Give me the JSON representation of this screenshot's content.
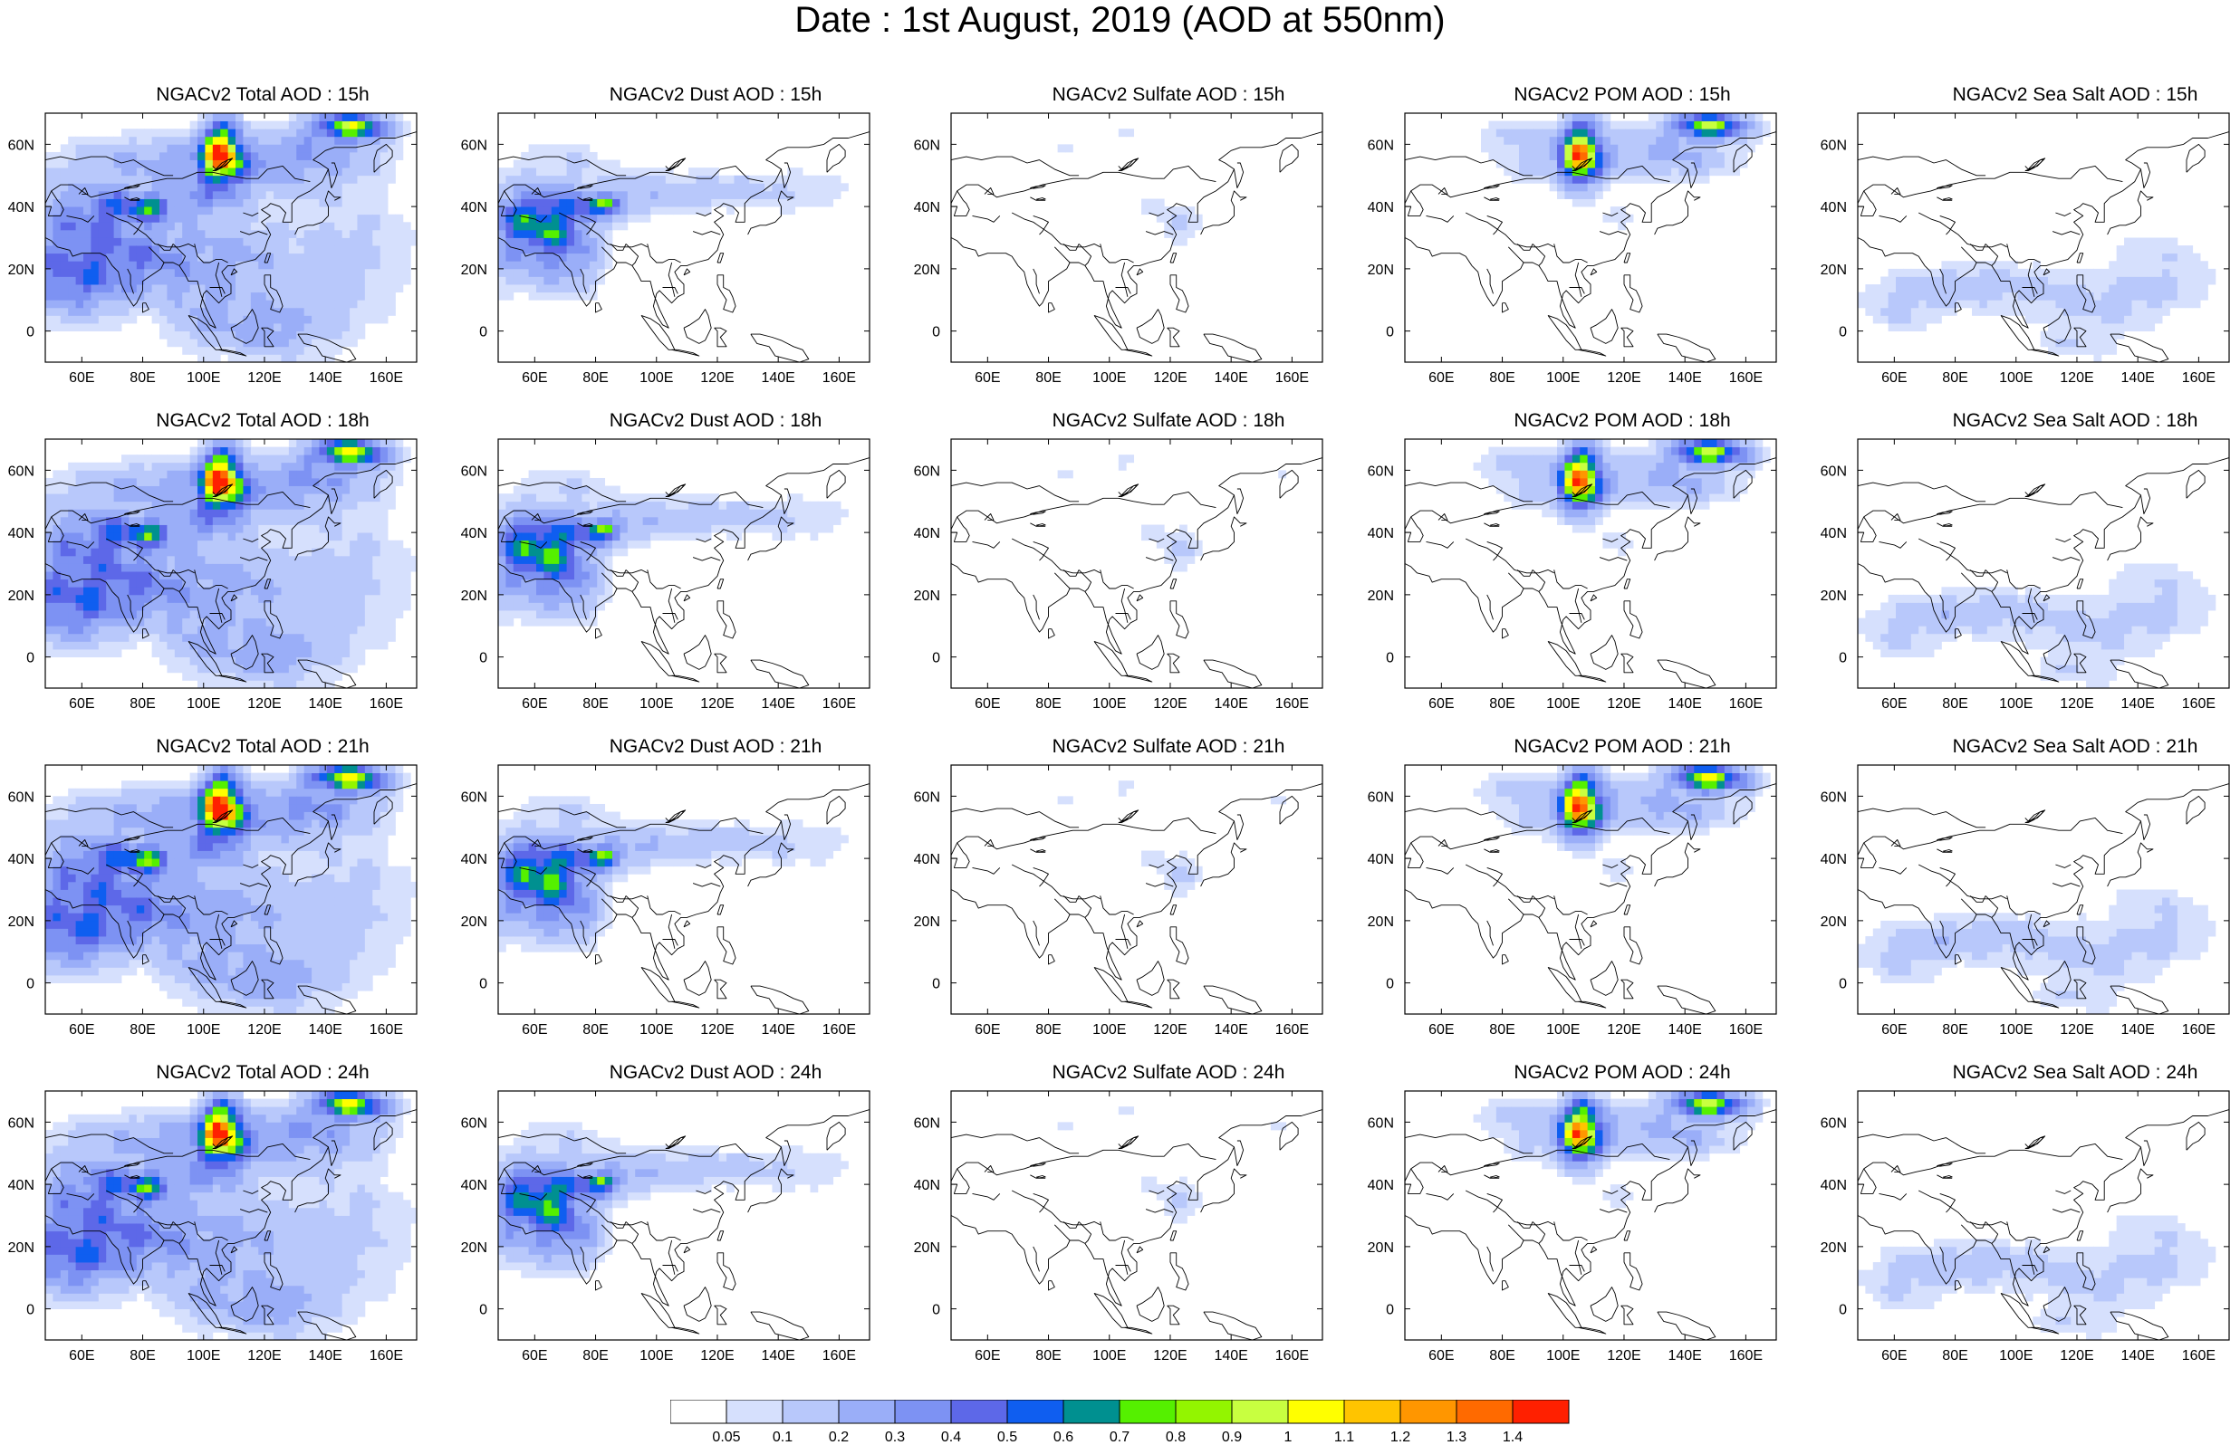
{
  "title": "Date : 1st August, 2019 (AOD at 550nm)",
  "panels": [
    [
      {
        "title": "NGACv2 Total AOD : 15h",
        "species": "total",
        "hour": 15
      },
      {
        "title": "NGACv2 Dust AOD : 15h",
        "species": "dust",
        "hour": 15
      },
      {
        "title": "NGACv2 Sulfate AOD : 15h",
        "species": "sulfate",
        "hour": 15
      },
      {
        "title": "NGACv2 POM AOD : 15h",
        "species": "pom",
        "hour": 15
      },
      {
        "title": "NGACv2 Sea Salt AOD : 15h",
        "species": "seasalt",
        "hour": 15
      }
    ],
    [
      {
        "title": "NGACv2 Total AOD : 18h",
        "species": "total",
        "hour": 18
      },
      {
        "title": "NGACv2 Dust AOD : 18h",
        "species": "dust",
        "hour": 18
      },
      {
        "title": "NGACv2 Sulfate AOD : 18h",
        "species": "sulfate",
        "hour": 18
      },
      {
        "title": "NGACv2 POM AOD : 18h",
        "species": "pom",
        "hour": 18
      },
      {
        "title": "NGACv2 Sea Salt AOD : 18h",
        "species": "seasalt",
        "hour": 18
      }
    ],
    [
      {
        "title": "NGACv2 Total AOD : 21h",
        "species": "total",
        "hour": 21
      },
      {
        "title": "NGACv2 Dust AOD : 21h",
        "species": "dust",
        "hour": 21
      },
      {
        "title": "NGACv2 Sulfate AOD : 21h",
        "species": "sulfate",
        "hour": 21
      },
      {
        "title": "NGACv2 POM AOD : 21h",
        "species": "pom",
        "hour": 21
      },
      {
        "title": "NGACv2 Sea Salt AOD : 21h",
        "species": "seasalt",
        "hour": 21
      }
    ],
    [
      {
        "title": "NGACv2 Total AOD : 24h",
        "species": "total",
        "hour": 24
      },
      {
        "title": "NGACv2 Dust AOD : 24h",
        "species": "dust",
        "hour": 24
      },
      {
        "title": "NGACv2 Sulfate AOD : 24h",
        "species": "sulfate",
        "hour": 24
      },
      {
        "title": "NGACv2 POM AOD : 24h",
        "species": "pom",
        "hour": 24
      },
      {
        "title": "NGACv2 Sea Salt  AOD : 24h",
        "species": "seasalt",
        "hour": 24
      }
    ]
  ],
  "axes": {
    "lon_ticks": [
      "60E",
      "80E",
      "100E",
      "120E",
      "140E",
      "160E"
    ],
    "lon_values": [
      60,
      80,
      100,
      120,
      140,
      160
    ],
    "lat_ticks": [
      "60N",
      "40N",
      "20N",
      "0"
    ],
    "lat_values": [
      60,
      40,
      20,
      0
    ],
    "lon_range": [
      48,
      170
    ],
    "lat_range": [
      -10,
      70
    ]
  },
  "colorbar": {
    "levels": [
      "0.05",
      "0.1",
      "0.2",
      "0.3",
      "0.4",
      "0.5",
      "0.6",
      "0.7",
      "0.8",
      "0.9",
      "1",
      "1.1",
      "1.2",
      "1.3",
      "1.4"
    ],
    "colors": [
      "#ffffff",
      "#d6e0fd",
      "#b8c8fb",
      "#9aaef8",
      "#7d92f3",
      "#5d68e8",
      "#0f5ef0",
      "#009090",
      "#55f000",
      "#93f500",
      "#c8ff40",
      "#ffff00",
      "#ffc400",
      "#ff9600",
      "#ff6a00",
      "#ff2000"
    ]
  },
  "plumes": {
    "siberian_fire": {
      "lon": 106,
      "lat": 57,
      "peak_aod": 1.4
    },
    "kamchatka_fire": {
      "lon": 148,
      "lat": 66,
      "peak_aod": 0.9
    }
  },
  "colors": {
    "coast": "#000000",
    "background": "#ffffff"
  }
}
